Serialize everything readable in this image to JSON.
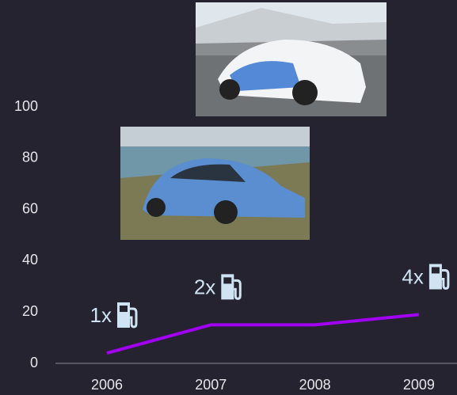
{
  "chart_data": {
    "type": "line",
    "categories": [
      "2006",
      "2007",
      "2008",
      "2009"
    ],
    "series": [
      {
        "name": null,
        "color": "#a100f2",
        "values": [
          4,
          15,
          15,
          19
        ]
      }
    ],
    "annotations": [
      "1x",
      "2x",
      null,
      "4x"
    ],
    "ylim": [
      0,
      100
    ],
    "yticks": [
      0,
      20,
      40,
      60,
      80,
      100
    ],
    "grid": false
  }
}
